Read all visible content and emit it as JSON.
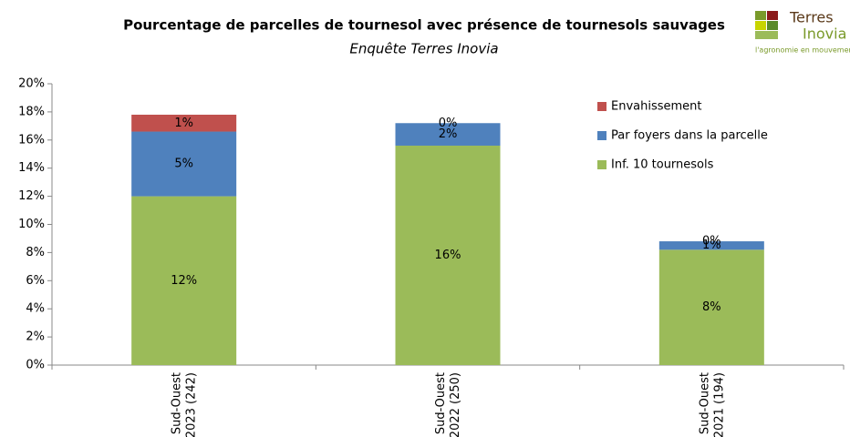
{
  "chart_data": {
    "type": "stacked_bar",
    "title": "Pourcentage de parcelles de tournesol avec présence de tournesols sauvages",
    "subtitle": "Enquête Terres Inovia",
    "logo": {
      "line1": "Terres",
      "line2": "Inovia",
      "tagline": "l'agronomie en mouvement"
    },
    "categories": [
      "Sud-Ouest 2023 (242)",
      "Sud-Ouest 2022 (250)",
      "Sud-Ouest 2021 (194)"
    ],
    "series": [
      {
        "name": "Inf. 10 tournesols",
        "color": "#9bbb59",
        "values": [
          12,
          15.6,
          8.2
        ],
        "value_labels": [
          "12%",
          "16%",
          "8%"
        ]
      },
      {
        "name": "Par foyers dans la parcelle",
        "color": "#4f81bd",
        "values": [
          4.6,
          1.6,
          0.6
        ],
        "value_labels": [
          "5%",
          "2%",
          "1%"
        ]
      },
      {
        "name": "Envahissement",
        "color": "#c0504d",
        "values": [
          1.2,
          0,
          0
        ],
        "value_labels": [
          "1%",
          "0%",
          "0%"
        ]
      }
    ],
    "ylim": [
      0,
      20
    ],
    "yticks": [
      {
        "value": 0,
        "label": "0%"
      },
      {
        "value": 2,
        "label": "2%"
      },
      {
        "value": 4,
        "label": "4%"
      },
      {
        "value": 6,
        "label": "6%"
      },
      {
        "value": 8,
        "label": "8%"
      },
      {
        "value": 10,
        "label": "10%"
      },
      {
        "value": 12,
        "label": "12%"
      },
      {
        "value": 14,
        "label": "14%"
      },
      {
        "value": 16,
        "label": "16%"
      },
      {
        "value": 18,
        "label": "18%"
      },
      {
        "value": 20,
        "label": "20%"
      }
    ],
    "grid": false,
    "legend": "upper right"
  }
}
